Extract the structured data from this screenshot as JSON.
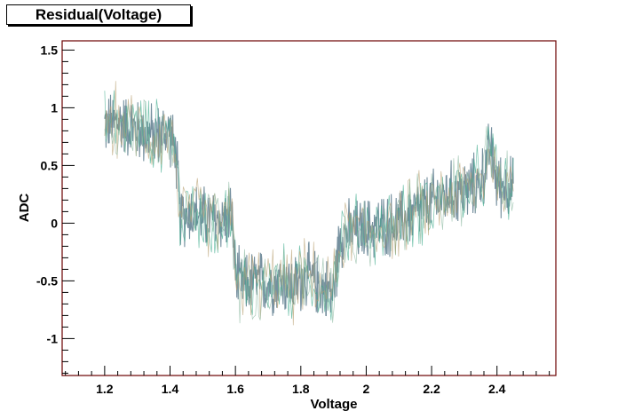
{
  "header": {
    "title": "Residual(Voltage)"
  },
  "chart_data": {
    "type": "line",
    "title": "Residual(Voltage)",
    "xlabel": "Voltage",
    "ylabel": "ADC",
    "xlim": [
      1.07,
      2.58
    ],
    "ylim": [
      -1.32,
      1.58
    ],
    "xticks": [
      1.2,
      1.4,
      1.6,
      1.8,
      2.0,
      2.2,
      2.4
    ],
    "xtick_labels": [
      "1.2",
      "1.4",
      "1.6",
      "1.8",
      "2",
      "2.2",
      "2.4"
    ],
    "yticks": [
      -1.0,
      -0.5,
      0.0,
      0.5,
      1.0,
      1.5
    ],
    "ytick_labels": [
      "-1",
      "-0.5",
      "0",
      "0.5",
      "1",
      "1.5"
    ],
    "grid": false,
    "colors": {
      "frame": "#6b0000",
      "series_main": "#6f8a9a",
      "series_accents": [
        "#3aaa8a",
        "#b8a070",
        "#8ab8a0"
      ]
    },
    "series": [
      {
        "x": [
          1.2,
          1.25,
          1.3,
          1.35,
          1.4,
          1.42,
          1.43,
          1.46,
          1.5,
          1.55,
          1.59,
          1.6,
          1.62,
          1.66,
          1.7,
          1.74,
          1.78,
          1.82,
          1.86,
          1.9,
          1.92,
          1.95,
          2.0,
          2.05,
          2.1,
          2.15,
          2.2,
          2.25,
          2.3,
          2.35,
          2.38,
          2.4,
          2.45
        ],
        "values": [
          0.85,
          0.88,
          0.8,
          0.76,
          0.8,
          0.55,
          0.05,
          0.1,
          0.05,
          0.03,
          0.05,
          -0.45,
          -0.55,
          -0.5,
          -0.52,
          -0.5,
          -0.55,
          -0.45,
          -0.55,
          -0.6,
          -0.1,
          -0.08,
          -0.05,
          -0.02,
          0.0,
          0.1,
          0.18,
          0.25,
          0.28,
          0.35,
          0.65,
          0.35,
          0.3
        ]
      }
    ]
  }
}
